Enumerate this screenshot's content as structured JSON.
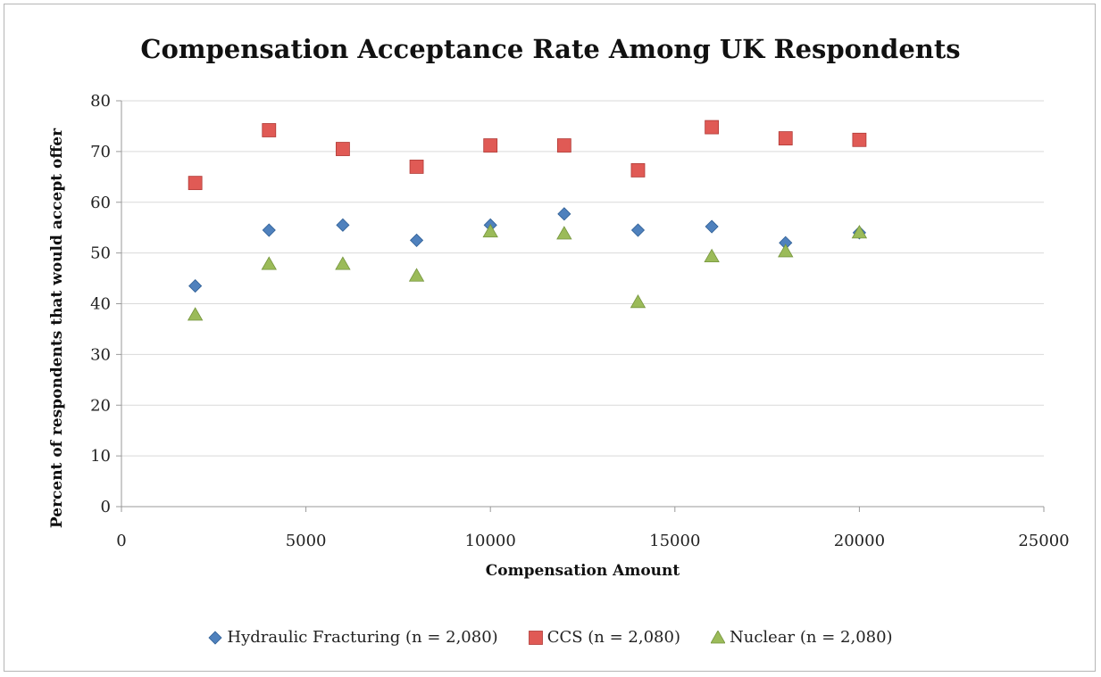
{
  "chart_data": {
    "type": "scatter",
    "title": "Compensation Acceptance Rate Among UK Respondents",
    "xlabel": "Compensation Amount",
    "ylabel": "Percent of respondents that would accept offer",
    "xlim": [
      0,
      25000
    ],
    "ylim": [
      0,
      80
    ],
    "xticks": [
      0,
      5000,
      10000,
      15000,
      20000,
      25000
    ],
    "yticks": [
      0,
      10,
      20,
      30,
      40,
      50,
      60,
      70,
      80
    ],
    "grid": "horizontal",
    "legend_position": "bottom",
    "x": [
      2000,
      4000,
      6000,
      8000,
      10000,
      12000,
      14000,
      16000,
      18000,
      20000
    ],
    "series": [
      {
        "name": "Hydraulic Fracturing (n = 2,080)",
        "marker": "diamond",
        "color": "#4f81bd",
        "values": [
          43.5,
          54.5,
          55.5,
          52.5,
          55.5,
          57.7,
          54.5,
          55.2,
          52.0,
          54.0
        ]
      },
      {
        "name": "CCS (n = 2,080)",
        "marker": "square",
        "color": "#e05a55",
        "values": [
          63.8,
          74.2,
          70.5,
          67.0,
          71.2,
          71.2,
          66.3,
          74.8,
          72.6,
          72.3
        ]
      },
      {
        "name": "Nuclear (n = 2,080)",
        "marker": "triangle",
        "color": "#9bbb59",
        "values": [
          37.8,
          47.8,
          47.8,
          45.5,
          54.2,
          53.8,
          40.3,
          49.3,
          50.3,
          54.0
        ]
      }
    ]
  }
}
